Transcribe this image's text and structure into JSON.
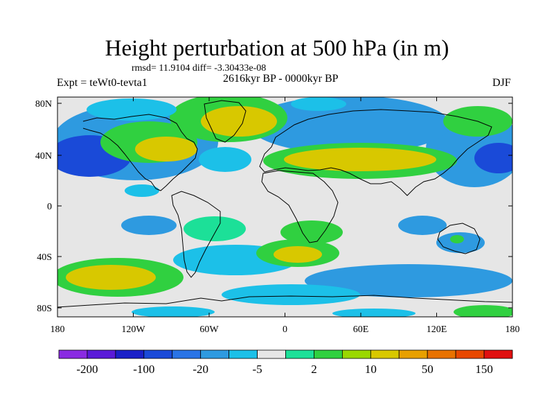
{
  "header": {
    "title": "Height perturbation at 500 hPa (in m)",
    "stats": "rmsd= 11.9104 diff= -3.30433e-08",
    "expt": "Expt = teWt0-tevta1",
    "period": "2616kyr BP - 0000kyr BP",
    "season": "DJF"
  },
  "map": {
    "lat_ticks": [
      "80N",
      "40N",
      "0",
      "40S",
      "80S"
    ],
    "lon_ticks": [
      "180",
      "120W",
      "60W",
      "0",
      "60E",
      "120E",
      "180"
    ]
  },
  "colorbar": {
    "colors": [
      "#8a2be2",
      "#5a1ad8",
      "#1a20c8",
      "#1a4ad8",
      "#2a74e6",
      "#2e9ae0",
      "#1cc0e8",
      "#e6e6e6",
      "#1ce098",
      "#30d040",
      "#9ad800",
      "#d8c800",
      "#e8a000",
      "#e87200",
      "#e84800",
      "#e01010"
    ],
    "labels": [
      "-200",
      "-100",
      "-20",
      "-5",
      "2",
      "10",
      "50",
      "150"
    ]
  }
}
